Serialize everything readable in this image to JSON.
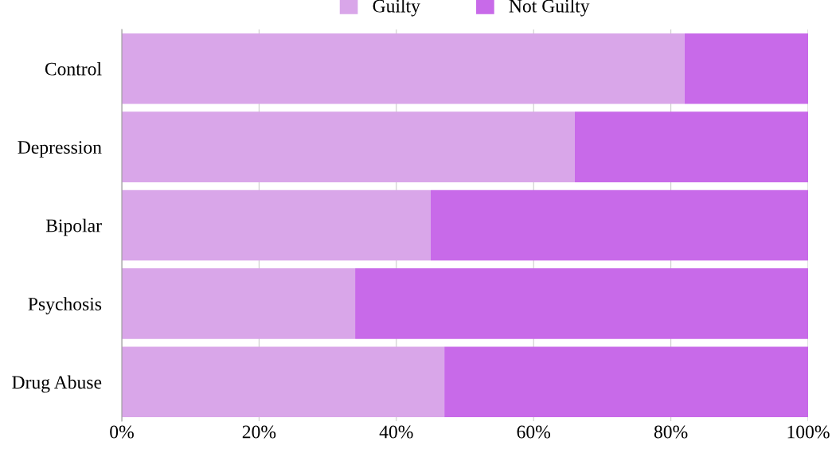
{
  "chart_data": {
    "type": "bar",
    "orientation": "horizontal",
    "stacked": true,
    "categories": [
      "Control",
      "Depression",
      "Bipolar",
      "Psychosis",
      "Drug Abuse"
    ],
    "series": [
      {
        "name": "Guilty",
        "color": "#d9a6e9",
        "values": [
          82,
          66,
          45,
          34,
          47
        ]
      },
      {
        "name": "Not Guilty",
        "color": "#c86ae9",
        "values": [
          18,
          34,
          55,
          66,
          53
        ]
      }
    ],
    "xlim": [
      0,
      100
    ],
    "xticks": [
      {
        "value": 0,
        "label": "0%"
      },
      {
        "value": 20,
        "label": "20%"
      },
      {
        "value": 40,
        "label": "40%"
      },
      {
        "value": 60,
        "label": "60%"
      },
      {
        "value": 80,
        "label": "80%"
      },
      {
        "value": 100,
        "label": "100%"
      }
    ],
    "grid": "x",
    "legend": "top"
  }
}
